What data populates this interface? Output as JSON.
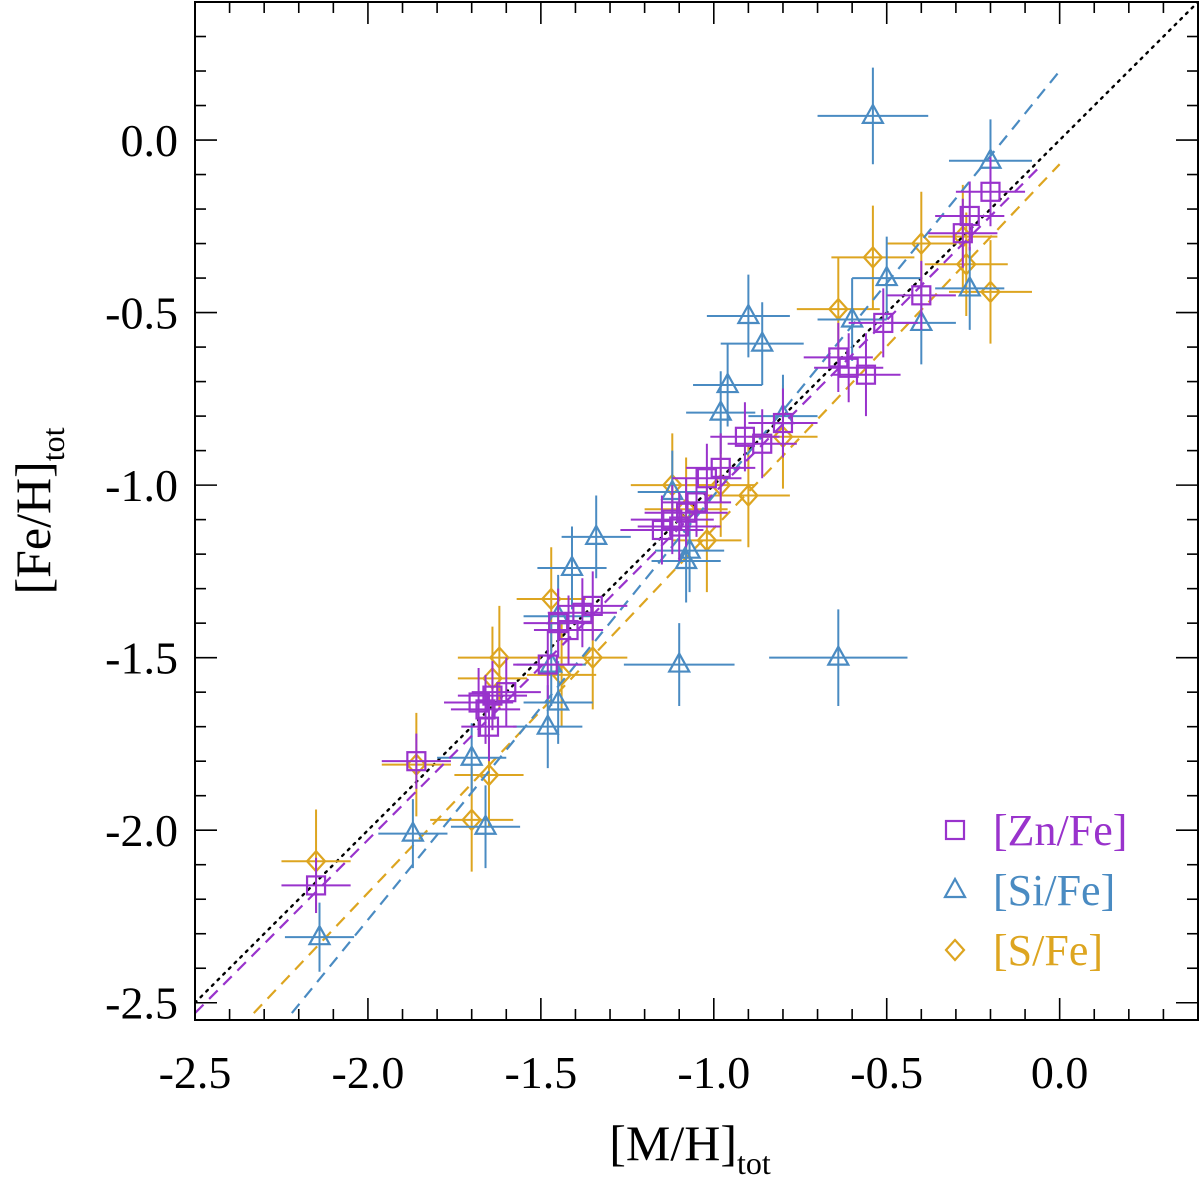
{
  "chart_data": {
    "type": "scatter",
    "xlabel": "[M/H]",
    "xlabel_sub": "tot",
    "ylabel": "[Fe/H]",
    "ylabel_sub": "tot",
    "xlim": [
      -2.5,
      0.4
    ],
    "ylim": [
      -2.55,
      0.4
    ],
    "xticks": [
      -2.5,
      -2.0,
      -1.5,
      -1.0,
      -0.5,
      0.0
    ],
    "xtick_labels": [
      "-2.5",
      "-2.0",
      "-1.5",
      "-1.0",
      "-0.5",
      "0.0"
    ],
    "yticks": [
      0.0,
      -0.5,
      -1.0,
      -1.5,
      -2.0,
      -2.5
    ],
    "ytick_labels": [
      "0.0",
      "-0.5",
      "-1.0",
      "-1.5",
      "-2.0",
      "-2.5"
    ],
    "grid": false,
    "legend_position": "bottom-right",
    "one_to_one_line": {
      "style": "dotted",
      "color": "#000000",
      "x": [
        -2.5,
        0.4
      ]
    },
    "series": [
      {
        "name": "[Zn/Fe]",
        "marker": "square",
        "color": "#9933CC",
        "fit": {
          "x": [
            -2.5,
            -0.05
          ],
          "y": [
            -2.53,
            -0.07
          ]
        },
        "points": [
          {
            "x": -2.15,
            "y": -2.16,
            "xerr": 0.1,
            "yerr": 0.08
          },
          {
            "x": -1.86,
            "y": -1.8,
            "xerr": 0.1,
            "yerr": 0.08
          },
          {
            "x": -1.68,
            "y": -1.63,
            "xerr": 0.1,
            "yerr": 0.1
          },
          {
            "x": -1.66,
            "y": -1.65,
            "xerr": 0.1,
            "yerr": 0.1
          },
          {
            "x": -1.64,
            "y": -1.61,
            "xerr": 0.1,
            "yerr": 0.1
          },
          {
            "x": -1.65,
            "y": -1.7,
            "xerr": 0.08,
            "yerr": 0.1
          },
          {
            "x": -1.6,
            "y": -1.6,
            "xerr": 0.1,
            "yerr": 0.1
          },
          {
            "x": -1.48,
            "y": -1.52,
            "xerr": 0.1,
            "yerr": 0.1
          },
          {
            "x": -1.45,
            "y": -1.4,
            "xerr": 0.1,
            "yerr": 0.1
          },
          {
            "x": -1.42,
            "y": -1.42,
            "xerr": 0.1,
            "yerr": 0.1
          },
          {
            "x": -1.38,
            "y": -1.37,
            "xerr": 0.1,
            "yerr": 0.1
          },
          {
            "x": -1.35,
            "y": -1.35,
            "xerr": 0.1,
            "yerr": 0.1
          },
          {
            "x": -1.15,
            "y": -1.13,
            "xerr": 0.12,
            "yerr": 0.1
          },
          {
            "x": -1.12,
            "y": -1.1,
            "xerr": 0.12,
            "yerr": 0.1
          },
          {
            "x": -1.1,
            "y": -1.12,
            "xerr": 0.12,
            "yerr": 0.1
          },
          {
            "x": -1.08,
            "y": -1.08,
            "xerr": 0.12,
            "yerr": 0.1
          },
          {
            "x": -1.05,
            "y": -1.05,
            "xerr": 0.1,
            "yerr": 0.1
          },
          {
            "x": -1.02,
            "y": -0.98,
            "xerr": 0.1,
            "yerr": 0.1
          },
          {
            "x": -0.98,
            "y": -0.95,
            "xerr": 0.1,
            "yerr": 0.1
          },
          {
            "x": -0.91,
            "y": -0.86,
            "xerr": 0.1,
            "yerr": 0.1
          },
          {
            "x": -0.86,
            "y": -0.88,
            "xerr": 0.1,
            "yerr": 0.1
          },
          {
            "x": -0.8,
            "y": -0.82,
            "xerr": 0.1,
            "yerr": 0.1
          },
          {
            "x": -0.64,
            "y": -0.63,
            "xerr": 0.1,
            "yerr": 0.1
          },
          {
            "x": -0.61,
            "y": -0.66,
            "xerr": 0.1,
            "yerr": 0.1
          },
          {
            "x": -0.56,
            "y": -0.68,
            "xerr": 0.1,
            "yerr": 0.12
          },
          {
            "x": -0.51,
            "y": -0.53,
            "xerr": 0.1,
            "yerr": 0.1
          },
          {
            "x": -0.4,
            "y": -0.45,
            "xerr": 0.1,
            "yerr": 0.1
          },
          {
            "x": -0.28,
            "y": -0.27,
            "xerr": 0.1,
            "yerr": 0.1
          },
          {
            "x": -0.26,
            "y": -0.22,
            "xerr": 0.1,
            "yerr": 0.1
          },
          {
            "x": -0.2,
            "y": -0.15,
            "xerr": 0.1,
            "yerr": 0.1
          }
        ]
      },
      {
        "name": "[Si/Fe]",
        "marker": "triangle",
        "color": "#4A8BC2",
        "fit": {
          "x": [
            -2.22,
            0.0
          ],
          "y": [
            -2.53,
            0.2
          ]
        },
        "points": [
          {
            "x": -2.14,
            "y": -2.31,
            "xerr": 0.1,
            "yerr": 0.1
          },
          {
            "x": -1.87,
            "y": -2.01,
            "xerr": 0.1,
            "yerr": 0.1
          },
          {
            "x": -1.7,
            "y": -1.79,
            "xerr": 0.1,
            "yerr": 0.1
          },
          {
            "x": -1.66,
            "y": -1.99,
            "xerr": 0.1,
            "yerr": 0.12
          },
          {
            "x": -1.48,
            "y": -1.7,
            "xerr": 0.1,
            "yerr": 0.12
          },
          {
            "x": -1.45,
            "y": -1.63,
            "xerr": 0.1,
            "yerr": 0.12
          },
          {
            "x": -1.47,
            "y": -1.52,
            "xerr": 0.1,
            "yerr": 0.12
          },
          {
            "x": -1.45,
            "y": -1.38,
            "xerr": 0.1,
            "yerr": 0.12
          },
          {
            "x": -1.41,
            "y": -1.24,
            "xerr": 0.1,
            "yerr": 0.12
          },
          {
            "x": -1.34,
            "y": -1.15,
            "xerr": 0.1,
            "yerr": 0.12
          },
          {
            "x": -1.12,
            "y": -1.02,
            "xerr": 0.1,
            "yerr": 0.12
          },
          {
            "x": -1.1,
            "y": -1.52,
            "xerr": 0.16,
            "yerr": 0.12
          },
          {
            "x": -1.08,
            "y": -1.22,
            "xerr": 0.1,
            "yerr": 0.12
          },
          {
            "x": -1.07,
            "y": -1.19,
            "xerr": 0.1,
            "yerr": 0.12
          },
          {
            "x": -0.98,
            "y": -0.79,
            "xerr": 0.1,
            "yerr": 0.12
          },
          {
            "x": -0.96,
            "y": -0.71,
            "xerr": 0.1,
            "yerr": 0.12
          },
          {
            "x": -0.9,
            "y": -0.51,
            "xerr": 0.12,
            "yerr": 0.12
          },
          {
            "x": -0.86,
            "y": -0.59,
            "xerr": 0.12,
            "yerr": 0.12
          },
          {
            "x": -0.8,
            "y": -0.8,
            "xerr": 0.1,
            "yerr": 0.12
          },
          {
            "x": -0.64,
            "y": -1.5,
            "xerr": 0.2,
            "yerr": 0.14
          },
          {
            "x": -0.6,
            "y": -0.52,
            "xerr": 0.1,
            "yerr": 0.12
          },
          {
            "x": -0.54,
            "y": 0.07,
            "xerr": 0.16,
            "yerr": 0.14
          },
          {
            "x": -0.5,
            "y": -0.4,
            "xerr": 0.1,
            "yerr": 0.12
          },
          {
            "x": -0.4,
            "y": -0.53,
            "xerr": 0.1,
            "yerr": 0.12
          },
          {
            "x": -0.26,
            "y": -0.43,
            "xerr": 0.1,
            "yerr": 0.12
          },
          {
            "x": -0.2,
            "y": -0.06,
            "xerr": 0.12,
            "yerr": 0.12
          }
        ]
      },
      {
        "name": "[S/Fe]",
        "marker": "diamond",
        "color": "#DDA520",
        "fit": {
          "x": [
            -2.33,
            0.0
          ],
          "y": [
            -2.53,
            -0.07
          ]
        },
        "points": [
          {
            "x": -2.15,
            "y": -2.09,
            "xerr": 0.1,
            "yerr": 0.15
          },
          {
            "x": -1.86,
            "y": -1.81,
            "xerr": 0.1,
            "yerr": 0.15
          },
          {
            "x": -1.7,
            "y": -1.97,
            "xerr": 0.12,
            "yerr": 0.15
          },
          {
            "x": -1.65,
            "y": -1.84,
            "xerr": 0.1,
            "yerr": 0.15
          },
          {
            "x": -1.64,
            "y": -1.56,
            "xerr": 0.1,
            "yerr": 0.15
          },
          {
            "x": -1.62,
            "y": -1.5,
            "xerr": 0.12,
            "yerr": 0.15
          },
          {
            "x": -1.47,
            "y": -1.33,
            "xerr": 0.1,
            "yerr": 0.15
          },
          {
            "x": -1.44,
            "y": -1.55,
            "xerr": 0.1,
            "yerr": 0.15
          },
          {
            "x": -1.35,
            "y": -1.5,
            "xerr": 0.1,
            "yerr": 0.15
          },
          {
            "x": -1.12,
            "y": -1.0,
            "xerr": 0.12,
            "yerr": 0.15
          },
          {
            "x": -1.08,
            "y": -1.07,
            "xerr": 0.12,
            "yerr": 0.15
          },
          {
            "x": -1.02,
            "y": -1.16,
            "xerr": 0.1,
            "yerr": 0.15
          },
          {
            "x": -0.98,
            "y": -1.0,
            "xerr": 0.1,
            "yerr": 0.15
          },
          {
            "x": -0.9,
            "y": -1.03,
            "xerr": 0.12,
            "yerr": 0.15
          },
          {
            "x": -0.8,
            "y": -0.86,
            "xerr": 0.1,
            "yerr": 0.15
          },
          {
            "x": -0.64,
            "y": -0.49,
            "xerr": 0.12,
            "yerr": 0.15
          },
          {
            "x": -0.54,
            "y": -0.34,
            "xerr": 0.12,
            "yerr": 0.15
          },
          {
            "x": -0.4,
            "y": -0.3,
            "xerr": 0.1,
            "yerr": 0.15
          },
          {
            "x": -0.27,
            "y": -0.36,
            "xerr": 0.12,
            "yerr": 0.15
          },
          {
            "x": -0.28,
            "y": -0.28,
            "xerr": 0.1,
            "yerr": 0.15
          },
          {
            "x": -0.2,
            "y": -0.44,
            "xerr": 0.12,
            "yerr": 0.15
          }
        ]
      }
    ]
  }
}
